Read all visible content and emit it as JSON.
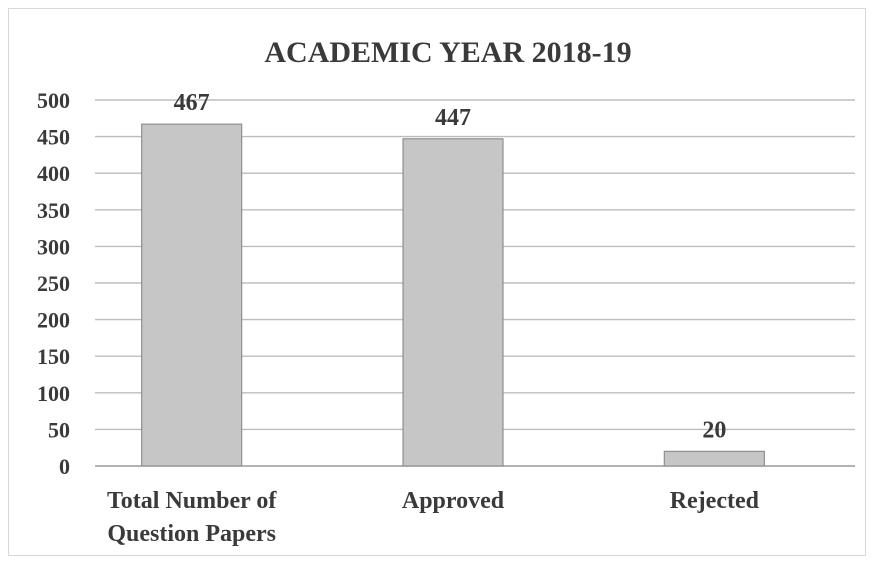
{
  "chart_data": {
    "type": "bar",
    "title": "ACADEMIC YEAR 2018-19",
    "categories": [
      [
        "Total Number of",
        "Question Papers"
      ],
      [
        "Approved"
      ],
      [
        "Rejected"
      ]
    ],
    "values": [
      467,
      447,
      20
    ],
    "data_labels": [
      "467",
      "447",
      "20"
    ],
    "y_ticks": [
      0,
      50,
      100,
      150,
      200,
      250,
      300,
      350,
      400,
      450,
      500
    ],
    "ylim": [
      0,
      500
    ],
    "xlabel": "",
    "ylabel": "",
    "grid": true,
    "legend": "none",
    "colors": {
      "bar_fill": "#c6c6c6",
      "bar_stroke": "#8f8f8f",
      "text": "#3a3a3a"
    }
  }
}
